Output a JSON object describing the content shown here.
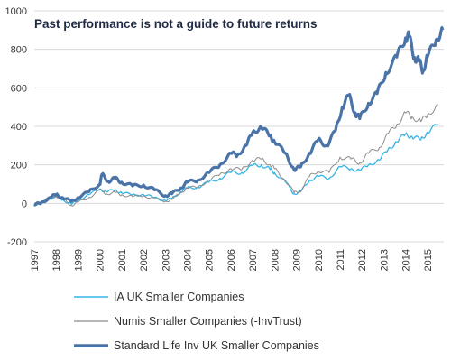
{
  "chart_data": {
    "type": "line",
    "title": "Past performance is not a guide to future returns",
    "xlabel": "",
    "ylabel": "",
    "xlim": [
      1997,
      2015.75
    ],
    "ylim": [
      -200,
      1000
    ],
    "yticks": [
      -200,
      0,
      200,
      400,
      600,
      800,
      1000
    ],
    "xticks": [
      "1997",
      "1998",
      "1999",
      "2000",
      "2001",
      "2002",
      "2003",
      "2004",
      "2005",
      "2006",
      "2007",
      "2008",
      "2009",
      "2010",
      "2011",
      "2012",
      "2013",
      "2014",
      "2015"
    ],
    "grid": true,
    "legend_position": "bottom",
    "series": [
      {
        "name": "IA UK Smaller Companies",
        "color": "#33b5e5",
        "points": [
          [
            1997,
            -5
          ],
          [
            1997.3,
            0
          ],
          [
            1997.7,
            25
          ],
          [
            1998,
            35
          ],
          [
            1998.3,
            20
          ],
          [
            1998.7,
            -5
          ],
          [
            1999,
            15
          ],
          [
            1999.5,
            45
          ],
          [
            2000,
            75
          ],
          [
            2000.3,
            60
          ],
          [
            2000.7,
            70
          ],
          [
            2001,
            55
          ],
          [
            2001.5,
            45
          ],
          [
            2002,
            45
          ],
          [
            2002.5,
            30
          ],
          [
            2003,
            15
          ],
          [
            2003.3,
            25
          ],
          [
            2003.7,
            60
          ],
          [
            2004,
            80
          ],
          [
            2004.5,
            85
          ],
          [
            2005,
            110
          ],
          [
            2005.5,
            130
          ],
          [
            2006,
            160
          ],
          [
            2006.5,
            160
          ],
          [
            2007,
            195
          ],
          [
            2007.4,
            200
          ],
          [
            2007.8,
            175
          ],
          [
            2008,
            160
          ],
          [
            2008.5,
            110
          ],
          [
            2008.9,
            50
          ],
          [
            2009.2,
            60
          ],
          [
            2009.6,
            120
          ],
          [
            2010,
            140
          ],
          [
            2010.5,
            130
          ],
          [
            2011,
            190
          ],
          [
            2011.5,
            180
          ],
          [
            2011.9,
            170
          ],
          [
            2012.3,
            200
          ],
          [
            2012.8,
            225
          ],
          [
            2013.2,
            280
          ],
          [
            2013.6,
            320
          ],
          [
            2014,
            360
          ],
          [
            2014.3,
            345
          ],
          [
            2014.7,
            330
          ],
          [
            2015,
            370
          ],
          [
            2015.5,
            410
          ]
        ]
      },
      {
        "name": "Numis Smaller Companies (-InvTrust)",
        "color": "#8c8c8c",
        "points": [
          [
            1997,
            -5
          ],
          [
            1997.3,
            5
          ],
          [
            1997.7,
            30
          ],
          [
            1998,
            38
          ],
          [
            1998.3,
            25
          ],
          [
            1998.7,
            -10
          ],
          [
            1999,
            5
          ],
          [
            1999.5,
            30
          ],
          [
            2000,
            70
          ],
          [
            2000.3,
            50
          ],
          [
            2000.7,
            55
          ],
          [
            2001,
            45
          ],
          [
            2001.5,
            35
          ],
          [
            2002,
            40
          ],
          [
            2002.5,
            25
          ],
          [
            2003,
            10
          ],
          [
            2003.3,
            20
          ],
          [
            2003.7,
            55
          ],
          [
            2004,
            80
          ],
          [
            2004.5,
            85
          ],
          [
            2005,
            120
          ],
          [
            2005.5,
            150
          ],
          [
            2006,
            180
          ],
          [
            2006.5,
            175
          ],
          [
            2007,
            225
          ],
          [
            2007.4,
            230
          ],
          [
            2007.8,
            200
          ],
          [
            2008,
            180
          ],
          [
            2008.5,
            120
          ],
          [
            2008.9,
            55
          ],
          [
            2009.2,
            65
          ],
          [
            2009.6,
            140
          ],
          [
            2010,
            170
          ],
          [
            2010.5,
            160
          ],
          [
            2011,
            240
          ],
          [
            2011.5,
            230
          ],
          [
            2011.9,
            210
          ],
          [
            2012.3,
            260
          ],
          [
            2012.8,
            290
          ],
          [
            2013.2,
            360
          ],
          [
            2013.6,
            410
          ],
          [
            2014,
            470
          ],
          [
            2014.3,
            450
          ],
          [
            2014.7,
            425
          ],
          [
            2015,
            460
          ],
          [
            2015.5,
            510
          ]
        ]
      },
      {
        "name": "Standard Life Inv UK Smaller Companies",
        "color": "#4a74a8",
        "points": [
          [
            1997,
            -5
          ],
          [
            1997.3,
            0
          ],
          [
            1997.7,
            30
          ],
          [
            1998,
            45
          ],
          [
            1998.3,
            30
          ],
          [
            1998.7,
            10
          ],
          [
            1999,
            30
          ],
          [
            1999.5,
            60
          ],
          [
            2000,
            100
          ],
          [
            2000.1,
            150
          ],
          [
            2000.4,
            115
          ],
          [
            2000.7,
            130
          ],
          [
            2001,
            110
          ],
          [
            2001.5,
            90
          ],
          [
            2002,
            95
          ],
          [
            2002.5,
            70
          ],
          [
            2003,
            40
          ],
          [
            2003.3,
            50
          ],
          [
            2003.7,
            80
          ],
          [
            2004,
            110
          ],
          [
            2004.5,
            120
          ],
          [
            2005,
            160
          ],
          [
            2005.5,
            200
          ],
          [
            2006,
            260
          ],
          [
            2006.3,
            250
          ],
          [
            2006.7,
            300
          ],
          [
            2007,
            370
          ],
          [
            2007.4,
            395
          ],
          [
            2007.8,
            350
          ],
          [
            2008,
            320
          ],
          [
            2008.5,
            260
          ],
          [
            2008.9,
            175
          ],
          [
            2009.2,
            190
          ],
          [
            2009.6,
            260
          ],
          [
            2010,
            330
          ],
          [
            2010.4,
            300
          ],
          [
            2010.8,
            380
          ],
          [
            2011.1,
            500
          ],
          [
            2011.4,
            560
          ],
          [
            2011.7,
            470
          ],
          [
            2011.9,
            440
          ],
          [
            2012.3,
            520
          ],
          [
            2012.7,
            570
          ],
          [
            2013.1,
            680
          ],
          [
            2013.6,
            760
          ],
          [
            2014,
            860
          ],
          [
            2014.15,
            870
          ],
          [
            2014.4,
            760
          ],
          [
            2014.6,
            740
          ],
          [
            2014.8,
            690
          ],
          [
            2015,
            760
          ],
          [
            2015.4,
            850
          ],
          [
            2015.7,
            900
          ]
        ]
      }
    ]
  }
}
